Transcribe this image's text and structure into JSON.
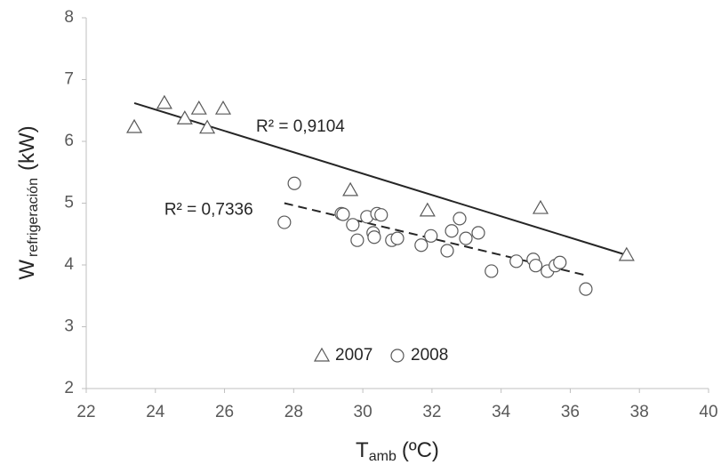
{
  "chart_data": {
    "type": "scatter",
    "x_label": {
      "main": "T",
      "sub": "amb",
      "unit": "(ºC)"
    },
    "y_label": {
      "main": "W",
      "sub": "refrigeración",
      "unit": "(kW)"
    },
    "xlim": [
      22,
      40
    ],
    "xticks": [
      22,
      24,
      26,
      28,
      30,
      32,
      34,
      36,
      38,
      40
    ],
    "ylim": [
      2,
      8
    ],
    "yticks": [
      2,
      3,
      4,
      5,
      6,
      7,
      8
    ],
    "legend": "bottom",
    "series": [
      {
        "name": "2007",
        "marker": "triangle",
        "color": "#595959",
        "x": [
          23.39,
          24.26,
          24.85,
          25.26,
          25.5,
          25.96,
          29.64,
          31.87,
          35.14,
          37.63
        ],
        "values": [
          6.23,
          6.62,
          6.37,
          6.53,
          6.22,
          6.53,
          5.21,
          4.88,
          4.92,
          4.16
        ],
        "trendline": {
          "x": [
            23.39,
            37.63
          ],
          "values": [
            6.62,
            4.16
          ],
          "style": "solid",
          "label": "R² = 0,9104"
        }
      },
      {
        "name": "2008",
        "marker": "circle",
        "color": "#595959",
        "x": [
          27.73,
          28.02,
          29.38,
          29.43,
          29.71,
          29.84,
          30.12,
          30.3,
          30.33,
          30.41,
          30.53,
          30.84,
          31.0,
          31.69,
          31.97,
          32.44,
          32.57,
          32.8,
          32.98,
          33.34,
          33.72,
          34.44,
          34.93,
          35.0,
          35.34,
          35.57,
          35.7,
          36.45
        ],
        "values": [
          4.69,
          5.32,
          4.83,
          4.82,
          4.65,
          4.4,
          4.78,
          4.52,
          4.45,
          4.83,
          4.81,
          4.4,
          4.43,
          4.32,
          4.47,
          4.23,
          4.55,
          4.75,
          4.43,
          4.52,
          3.9,
          4.06,
          4.09,
          3.99,
          3.9,
          3.99,
          4.04,
          3.61
        ],
        "trendline": {
          "x": [
            27.73,
            36.47
          ],
          "values": [
            5.0,
            3.83
          ],
          "style": "dashed",
          "label": "R² = 0,7336"
        }
      }
    ]
  }
}
